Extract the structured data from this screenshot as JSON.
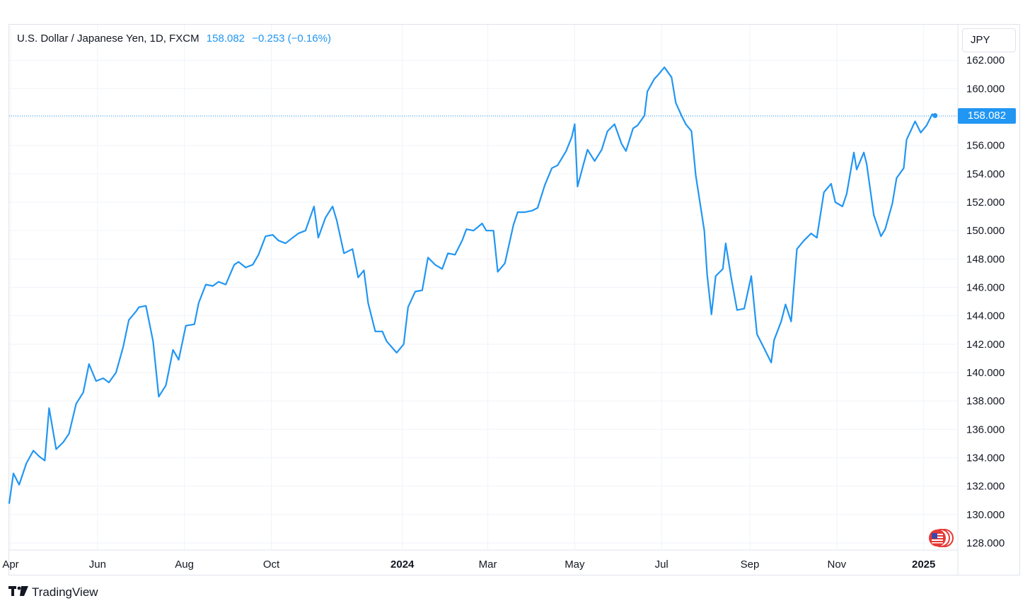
{
  "header": {
    "symbol": "U.S. Dollar / Japanese Yen, 1D, FXCM",
    "last_value": "158.082",
    "change": "−0.253 (−0.16%)"
  },
  "currency_label": "JPY",
  "price_tag": "158.082",
  "brand": {
    "name": "TradingView",
    "icon": "tradingview-logo-icon"
  },
  "flag_icon": "us-flag-icon",
  "colors": {
    "line": "#2196f3",
    "grid": "#f0f3fa",
    "axis_text": "#131722",
    "tag_bg": "#2196f3"
  },
  "chart_data": {
    "type": "line",
    "title": "U.S. Dollar / Japanese Yen, 1D, FXCM",
    "xlabel": "",
    "ylabel": "",
    "ylim": [
      127.5,
      164.5
    ],
    "y_ticks": [
      "128.000",
      "130.000",
      "132.000",
      "134.000",
      "136.000",
      "138.000",
      "140.000",
      "142.000",
      "144.000",
      "146.000",
      "148.000",
      "150.000",
      "152.000",
      "154.000",
      "156.000",
      "158.000",
      "160.000",
      "162.000"
    ],
    "x_ticks": [
      {
        "label": "Apr",
        "date": "2023-04-01",
        "bold": false
      },
      {
        "label": "Jun",
        "date": "2023-06-01",
        "bold": false
      },
      {
        "label": "Aug",
        "date": "2023-08-01",
        "bold": false
      },
      {
        "label": "Oct",
        "date": "2023-10-01",
        "bold": false
      },
      {
        "label": "2024",
        "date": "2024-01-01",
        "bold": true
      },
      {
        "label": "Mar",
        "date": "2024-03-01",
        "bold": false
      },
      {
        "label": "May",
        "date": "2024-05-01",
        "bold": false
      },
      {
        "label": "Jul",
        "date": "2024-07-01",
        "bold": false
      },
      {
        "label": "Sep",
        "date": "2024-09-01",
        "bold": false
      },
      {
        "label": "Nov",
        "date": "2024-11-01",
        "bold": false
      },
      {
        "label": "2025",
        "date": "2025-01-01",
        "bold": true
      }
    ],
    "x_range": [
      "2023-03-31",
      "2025-01-25"
    ],
    "last_price": 158.082,
    "grid": true,
    "series": [
      {
        "points": [
          [
            "2023-03-31",
            130.8
          ],
          [
            "2023-04-03",
            132.9
          ],
          [
            "2023-04-07",
            132.1
          ],
          [
            "2023-04-12",
            133.6
          ],
          [
            "2023-04-17",
            134.5
          ],
          [
            "2023-04-21",
            134.1
          ],
          [
            "2023-04-25",
            133.8
          ],
          [
            "2023-04-28",
            137.5
          ],
          [
            "2023-05-03",
            134.6
          ],
          [
            "2023-05-08",
            135.1
          ],
          [
            "2023-05-12",
            135.7
          ],
          [
            "2023-05-17",
            137.8
          ],
          [
            "2023-05-22",
            138.6
          ],
          [
            "2023-05-26",
            140.6
          ],
          [
            "2023-05-31",
            139.4
          ],
          [
            "2023-06-05",
            139.6
          ],
          [
            "2023-06-09",
            139.3
          ],
          [
            "2023-06-14",
            140.0
          ],
          [
            "2023-06-19",
            141.8
          ],
          [
            "2023-06-23",
            143.7
          ],
          [
            "2023-06-28",
            144.3
          ],
          [
            "2023-06-30",
            144.6
          ],
          [
            "2023-07-05",
            144.7
          ],
          [
            "2023-07-10",
            142.2
          ],
          [
            "2023-07-14",
            138.3
          ],
          [
            "2023-07-19",
            139.1
          ],
          [
            "2023-07-24",
            141.6
          ],
          [
            "2023-07-28",
            140.9
          ],
          [
            "2023-08-02",
            143.3
          ],
          [
            "2023-08-08",
            143.4
          ],
          [
            "2023-08-11",
            144.9
          ],
          [
            "2023-08-16",
            146.2
          ],
          [
            "2023-08-21",
            146.1
          ],
          [
            "2023-08-25",
            146.4
          ],
          [
            "2023-08-30",
            146.2
          ],
          [
            "2023-09-05",
            147.6
          ],
          [
            "2023-09-08",
            147.8
          ],
          [
            "2023-09-13",
            147.4
          ],
          [
            "2023-09-18",
            147.6
          ],
          [
            "2023-09-22",
            148.3
          ],
          [
            "2023-09-27",
            149.6
          ],
          [
            "2023-10-02",
            149.7
          ],
          [
            "2023-10-06",
            149.3
          ],
          [
            "2023-10-11",
            149.1
          ],
          [
            "2023-10-16",
            149.5
          ],
          [
            "2023-10-20",
            149.8
          ],
          [
            "2023-10-25",
            150.0
          ],
          [
            "2023-10-31",
            151.7
          ],
          [
            "2023-11-03",
            149.5
          ],
          [
            "2023-11-08",
            150.9
          ],
          [
            "2023-11-13",
            151.7
          ],
          [
            "2023-11-16",
            150.7
          ],
          [
            "2023-11-21",
            148.4
          ],
          [
            "2023-11-27",
            148.7
          ],
          [
            "2023-12-01",
            146.7
          ],
          [
            "2023-12-05",
            147.2
          ],
          [
            "2023-12-08",
            144.9
          ],
          [
            "2023-12-13",
            142.9
          ],
          [
            "2023-12-18",
            142.9
          ],
          [
            "2023-12-21",
            142.2
          ],
          [
            "2023-12-28",
            141.4
          ],
          [
            "2024-01-02",
            142.0
          ],
          [
            "2024-01-05",
            144.6
          ],
          [
            "2024-01-10",
            145.7
          ],
          [
            "2024-01-15",
            145.8
          ],
          [
            "2024-01-19",
            148.1
          ],
          [
            "2024-01-24",
            147.6
          ],
          [
            "2024-01-29",
            147.3
          ],
          [
            "2024-02-02",
            148.4
          ],
          [
            "2024-02-07",
            148.3
          ],
          [
            "2024-02-12",
            149.3
          ],
          [
            "2024-02-15",
            150.1
          ],
          [
            "2024-02-20",
            150.0
          ],
          [
            "2024-02-26",
            150.5
          ],
          [
            "2024-02-29",
            150.0
          ],
          [
            "2024-03-05",
            150.0
          ],
          [
            "2024-03-08",
            147.1
          ],
          [
            "2024-03-13",
            147.7
          ],
          [
            "2024-03-19",
            150.4
          ],
          [
            "2024-03-22",
            151.3
          ],
          [
            "2024-03-27",
            151.3
          ],
          [
            "2024-04-01",
            151.4
          ],
          [
            "2024-04-05",
            151.6
          ],
          [
            "2024-04-10",
            153.2
          ],
          [
            "2024-04-15",
            154.4
          ],
          [
            "2024-04-19",
            154.6
          ],
          [
            "2024-04-25",
            155.6
          ],
          [
            "2024-04-29",
            156.6
          ],
          [
            "2024-05-01",
            157.5
          ],
          [
            "2024-05-03",
            153.1
          ],
          [
            "2024-05-07",
            154.6
          ],
          [
            "2024-05-10",
            155.7
          ],
          [
            "2024-05-15",
            154.9
          ],
          [
            "2024-05-20",
            155.7
          ],
          [
            "2024-05-24",
            157.0
          ],
          [
            "2024-05-29",
            157.5
          ],
          [
            "2024-06-03",
            156.1
          ],
          [
            "2024-06-06",
            155.6
          ],
          [
            "2024-06-11",
            157.2
          ],
          [
            "2024-06-14",
            157.4
          ],
          [
            "2024-06-19",
            158.1
          ],
          [
            "2024-06-21",
            159.8
          ],
          [
            "2024-06-26",
            160.7
          ],
          [
            "2024-06-28",
            160.9
          ],
          [
            "2024-07-03",
            161.5
          ],
          [
            "2024-07-08",
            160.8
          ],
          [
            "2024-07-11",
            159.0
          ],
          [
            "2024-07-15",
            158.1
          ],
          [
            "2024-07-18",
            157.5
          ],
          [
            "2024-07-22",
            157.0
          ],
          [
            "2024-07-25",
            153.9
          ],
          [
            "2024-07-31",
            150.0
          ],
          [
            "2024-08-02",
            146.9
          ],
          [
            "2024-08-05",
            144.1
          ],
          [
            "2024-08-08",
            146.8
          ],
          [
            "2024-08-13",
            147.3
          ],
          [
            "2024-08-15",
            149.1
          ],
          [
            "2024-08-19",
            146.6
          ],
          [
            "2024-08-23",
            144.4
          ],
          [
            "2024-08-28",
            144.5
          ],
          [
            "2024-09-02",
            146.8
          ],
          [
            "2024-09-06",
            142.7
          ],
          [
            "2024-09-11",
            141.7
          ],
          [
            "2024-09-16",
            140.7
          ],
          [
            "2024-09-18",
            142.3
          ],
          [
            "2024-09-23",
            143.6
          ],
          [
            "2024-09-26",
            144.8
          ],
          [
            "2024-09-30",
            143.6
          ],
          [
            "2024-10-04",
            148.7
          ],
          [
            "2024-10-09",
            149.3
          ],
          [
            "2024-10-14",
            149.8
          ],
          [
            "2024-10-18",
            149.5
          ],
          [
            "2024-10-23",
            152.7
          ],
          [
            "2024-10-28",
            153.3
          ],
          [
            "2024-10-31",
            152.0
          ],
          [
            "2024-11-05",
            151.7
          ],
          [
            "2024-11-08",
            152.6
          ],
          [
            "2024-11-13",
            155.5
          ],
          [
            "2024-11-15",
            154.3
          ],
          [
            "2024-11-20",
            155.5
          ],
          [
            "2024-11-22",
            154.7
          ],
          [
            "2024-11-27",
            151.1
          ],
          [
            "2024-12-02",
            149.6
          ],
          [
            "2024-12-05",
            150.1
          ],
          [
            "2024-12-10",
            151.9
          ],
          [
            "2024-12-13",
            153.7
          ],
          [
            "2024-12-18",
            154.4
          ],
          [
            "2024-12-20",
            156.4
          ],
          [
            "2024-12-26",
            157.7
          ],
          [
            "2024-12-30",
            156.9
          ],
          [
            "2025-01-03",
            157.4
          ],
          [
            "2025-01-07",
            158.2
          ],
          [
            "2025-01-09",
            158.1
          ]
        ]
      }
    ]
  }
}
